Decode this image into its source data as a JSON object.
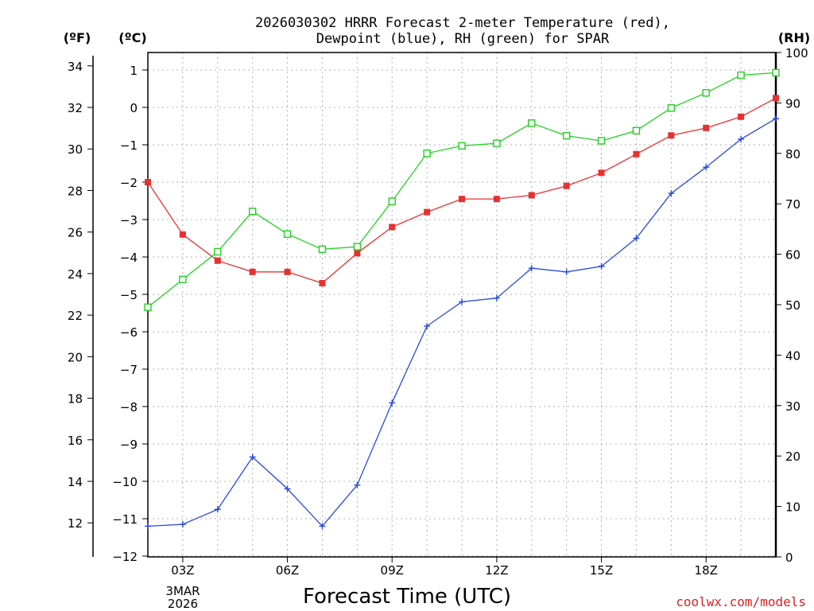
{
  "chart_data": {
    "type": "line",
    "title_line1": "2026030302 HRRR Forecast 2-meter Temperature (red),",
    "title_line2": "Dewpoint (blue), RH (green) for SPAR",
    "xlabel": "Forecast Time (UTC)",
    "credit": "coolwx.com/models",
    "x_hours": [
      2,
      3,
      4,
      5,
      6,
      7,
      8,
      9,
      10,
      11,
      12,
      13,
      14,
      15,
      16,
      17,
      18,
      19,
      20
    ],
    "x_ticks": [
      {
        "hour": 3,
        "label": "03Z"
      },
      {
        "hour": 6,
        "label": "06Z"
      },
      {
        "hour": 9,
        "label": "09Z"
      },
      {
        "hour": 12,
        "label": "12Z"
      },
      {
        "hour": 15,
        "label": "15Z"
      },
      {
        "hour": 18,
        "label": "18Z"
      }
    ],
    "date_line1": "3MAR",
    "date_line2": "2026",
    "xlim": [
      2,
      20
    ],
    "axes": {
      "fahrenheit": {
        "unit_label": "(ºF)",
        "ticks": [
          12,
          14,
          16,
          18,
          20,
          22,
          24,
          26,
          28,
          30,
          32,
          34
        ]
      },
      "celsius": {
        "unit_label": "(ºC)",
        "ylim": [
          -12.1,
          1.3
        ],
        "ticks": [
          -12,
          -11,
          -10,
          -9,
          -8,
          -7,
          -6,
          -5,
          -4,
          -3,
          -2,
          -1,
          0,
          1
        ]
      },
      "rh": {
        "unit_label": "(RH)",
        "ylim": [
          0,
          100
        ],
        "ticks": [
          0,
          10,
          20,
          30,
          40,
          50,
          60,
          70,
          80,
          90,
          100
        ]
      }
    },
    "series": [
      {
        "name": "Temperature",
        "unit": "C",
        "color": "#e83030",
        "marker": "filled-square",
        "values": [
          -2.0,
          -3.4,
          -4.1,
          -4.4,
          -4.4,
          -4.7,
          -3.9,
          -3.2,
          -2.8,
          -2.45,
          -2.45,
          -2.35,
          -2.1,
          -1.75,
          -1.25,
          -0.75,
          -0.55,
          -0.25,
          0.25
        ]
      },
      {
        "name": "Dewpoint",
        "unit": "C",
        "color": "#2848e0",
        "marker": "plus",
        "values": [
          -11.2,
          -11.15,
          -10.75,
          -9.35,
          -10.2,
          -11.2,
          -10.1,
          -7.9,
          -5.85,
          -5.2,
          -5.1,
          -4.3,
          -4.4,
          -4.25,
          -3.5,
          -2.3,
          -1.6,
          -0.85,
          -0.3
        ]
      },
      {
        "name": "RH",
        "unit": "%",
        "color": "#20d020",
        "marker": "open-square",
        "values": [
          49.5,
          55,
          60.5,
          68.5,
          64,
          61,
          61.5,
          70.5,
          80,
          81.5,
          82,
          86,
          83.5,
          82.5,
          84.5,
          89,
          92,
          95.5,
          96
        ]
      }
    ]
  }
}
